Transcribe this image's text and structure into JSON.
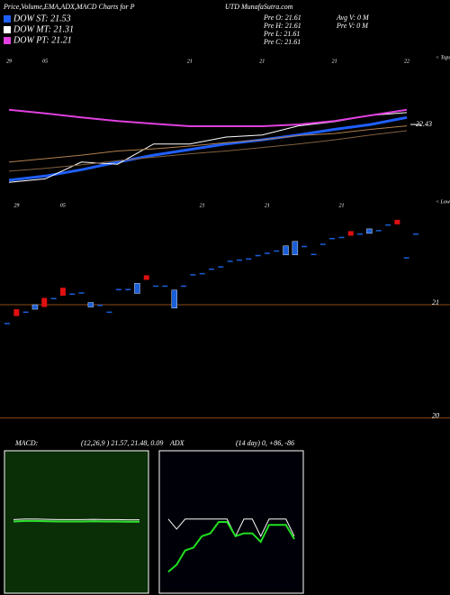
{
  "header": {
    "left": "Price,Volume,EMA,ADX,MACD Charts for P",
    "right": "UTD MunafaSutra.com"
  },
  "info": {
    "left": [
      "Pre O: 21.61",
      "Pre H: 21.61",
      "Pre L: 21.61",
      "Pre C: 21.61"
    ],
    "right": [
      "Avg V: 0 M",
      "Pre V: 0 M"
    ]
  },
  "chart_data": [
    {
      "type": "line",
      "annotation": "< Tops",
      "categories": [
        "29",
        "05",
        null,
        null,
        null,
        "21",
        null,
        "21",
        null,
        "21",
        null,
        "22"
      ],
      "ylim": [
        21.5,
        23.31
      ],
      "yticks": [
        22.43
      ],
      "series": [
        {
          "name": "DOW ST: 21.53",
          "color": "#1f5fff",
          "width": 3,
          "values": [
            21.63,
            21.69,
            21.78,
            21.89,
            21.99,
            22.07,
            22.15,
            22.21,
            22.28,
            22.36,
            22.43,
            22.53
          ]
        },
        {
          "name": "DOW MT: 21.31",
          "color": "#ffffff",
          "width": 1,
          "values": [
            21.6,
            21.65,
            21.89,
            21.86,
            22.15,
            22.15,
            22.25,
            22.28,
            22.41,
            22.47,
            22.56,
            22.6
          ]
        },
        {
          "name": "DOW PT: 21.21",
          "color": "#e040e0",
          "width": 2,
          "values": [
            22.64,
            22.59,
            22.53,
            22.48,
            22.44,
            22.405,
            22.405,
            22.405,
            22.43,
            22.48,
            22.56,
            22.64
          ]
        },
        {
          "color": "#b08050",
          "width": 1,
          "values": [
            21.89,
            21.94,
            21.99,
            22.05,
            22.08,
            22.12,
            22.17,
            22.21,
            22.27,
            22.3,
            22.36,
            22.41
          ]
        },
        {
          "color": "#806040",
          "width": 1,
          "values": [
            21.76,
            21.8,
            21.85,
            21.91,
            21.96,
            22.01,
            22.05,
            22.1,
            22.15,
            22.21,
            22.28,
            22.34
          ]
        }
      ]
    },
    {
      "type": "candlestick",
      "annotation": "< Lows",
      "categories": [
        null,
        "29",
        null,
        null,
        null,
        null,
        "05",
        null,
        null,
        null,
        null,
        null,
        null,
        null,
        null,
        null,
        null,
        null,
        null,
        null,
        null,
        "21",
        null,
        null,
        null,
        null,
        null,
        null,
        "21",
        null,
        null,
        null,
        null,
        null,
        null,
        null,
        "21",
        null,
        null,
        null,
        null,
        null,
        null,
        null,
        null
      ],
      "open": [
        20.84,
        20.9,
        20.94,
        21.0,
        20.98,
        21.06,
        21.08,
        21.1,
        21.11,
        21.02,
        21.0,
        20.94,
        21.14,
        21.14,
        21.19,
        21.22,
        21.17,
        21.17,
        21.13,
        21.17,
        21.27,
        21.28,
        21.32,
        21.34,
        21.39,
        21.4,
        21.41,
        21.44,
        21.46,
        21.48,
        21.52,
        21.56,
        21.52,
        21.45,
        21.54,
        21.59,
        21.6,
        21.61,
        21.63,
        21.67,
        21.66,
        21.71,
        21.71,
        21.42,
        21.63
      ],
      "close": [
        20.84,
        20.96,
        20.94,
        20.96,
        21.06,
        21.06,
        21.15,
        21.1,
        21.11,
        20.98,
        21.0,
        20.94,
        21.14,
        21.14,
        21.1,
        21.26,
        21.17,
        21.17,
        20.97,
        21.17,
        21.27,
        21.28,
        21.32,
        21.34,
        21.39,
        21.4,
        21.41,
        21.44,
        21.46,
        21.48,
        21.44,
        21.44,
        21.52,
        21.45,
        21.54,
        21.59,
        21.6,
        21.65,
        21.63,
        21.63,
        21.66,
        21.71,
        21.75,
        21.42,
        21.63
      ],
      "up_color": "#e01010",
      "down_color": "#1a5fd8",
      "ylim": [
        19.79,
        21.9
      ],
      "yticks": [
        20,
        21
      ],
      "grid": true,
      "grid_color": "#8b4a1a"
    },
    {
      "type": "line",
      "title": "MACD:",
      "subtitle": "(12,26,9 ) 21.57, 21.48, 0.09",
      "background": "#0a2e06",
      "ylim": [
        -3,
        3
      ],
      "series": [
        {
          "color": "#ffffff",
          "width": 1,
          "values": [
            0.1,
            0.12,
            0.12,
            0.11,
            0.1,
            0.1,
            0.1,
            0.11,
            0.1,
            0.1,
            0.09,
            0.09
          ]
        },
        {
          "color": "#30e030",
          "width": 2,
          "values": [
            0.02,
            0.04,
            0.04,
            0.03,
            0.02,
            0.02,
            0.02,
            0.03,
            0.02,
            0.02,
            0.01,
            0.01
          ]
        }
      ]
    },
    {
      "type": "line",
      "title": "ADX",
      "subtitle": "(14 day) 0, +86, -86",
      "background": "#000008",
      "ylim": [
        0,
        100
      ],
      "series": [
        {
          "color": "#ffffff",
          "width": 1,
          "values": [
            52,
            45,
            52,
            52,
            52,
            52,
            52,
            52,
            40,
            52,
            52,
            40,
            52,
            52,
            52,
            40
          ]
        },
        {
          "color": "#20e020",
          "width": 2,
          "values": [
            15,
            20,
            30,
            32,
            40,
            42,
            50,
            50,
            40,
            42,
            42,
            36,
            48,
            48,
            48,
            38
          ]
        }
      ]
    }
  ]
}
